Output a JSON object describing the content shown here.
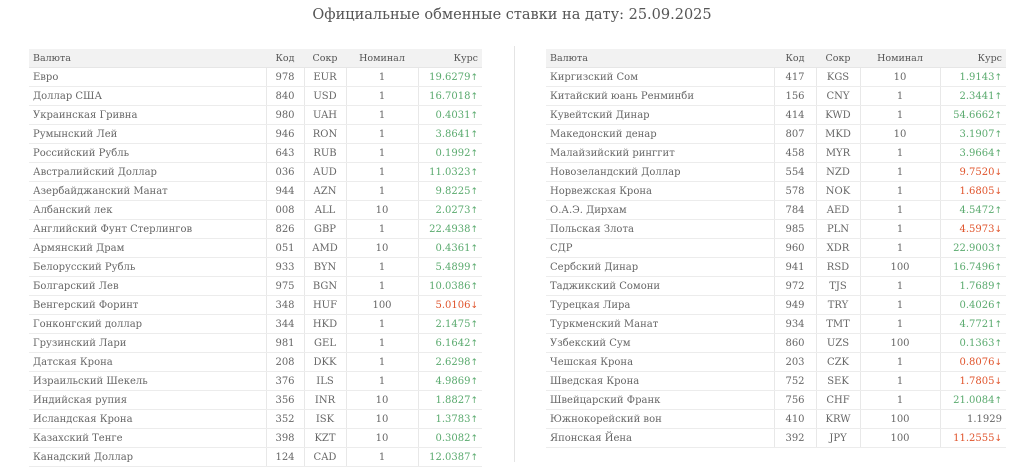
{
  "title": "Официальные обменные ставки на дату: 25.09.2025",
  "headers": {
    "currency": "Валюта",
    "code": "Код",
    "abbr": "Сокр",
    "nominal": "Номинал",
    "rate": "Курс"
  },
  "colors": {
    "up": "#5aaa6e",
    "down": "#e0542c",
    "neutral": "#666666"
  },
  "left_rows": [
    {
      "name": "Евро",
      "code": "978",
      "abbr": "EUR",
      "nominal": "1",
      "rate": "19.6279",
      "trend": "up"
    },
    {
      "name": "Доллар США",
      "code": "840",
      "abbr": "USD",
      "nominal": "1",
      "rate": "16.7018",
      "trend": "up"
    },
    {
      "name": "Украинская Гривна",
      "code": "980",
      "abbr": "UAH",
      "nominal": "1",
      "rate": "0.4031",
      "trend": "up"
    },
    {
      "name": "Румынский Лей",
      "code": "946",
      "abbr": "RON",
      "nominal": "1",
      "rate": "3.8641",
      "trend": "up"
    },
    {
      "name": "Российский Рубль",
      "code": "643",
      "abbr": "RUB",
      "nominal": "1",
      "rate": "0.1992",
      "trend": "up"
    },
    {
      "name": "Австралийский Доллар",
      "code": "036",
      "abbr": "AUD",
      "nominal": "1",
      "rate": "11.0323",
      "trend": "up"
    },
    {
      "name": "Азербайджанский Манат",
      "code": "944",
      "abbr": "AZN",
      "nominal": "1",
      "rate": "9.8225",
      "trend": "up"
    },
    {
      "name": "Албанский лек",
      "code": "008",
      "abbr": "ALL",
      "nominal": "10",
      "rate": "2.0273",
      "trend": "up"
    },
    {
      "name": "Английский Фунт Стерлингов",
      "code": "826",
      "abbr": "GBP",
      "nominal": "1",
      "rate": "22.4938",
      "trend": "up"
    },
    {
      "name": "Армянский Драм",
      "code": "051",
      "abbr": "AMD",
      "nominal": "10",
      "rate": "0.4361",
      "trend": "up"
    },
    {
      "name": "Белорусский Рубль",
      "code": "933",
      "abbr": "BYN",
      "nominal": "1",
      "rate": "5.4899",
      "trend": "up"
    },
    {
      "name": "Болгарский Лев",
      "code": "975",
      "abbr": "BGN",
      "nominal": "1",
      "rate": "10.0386",
      "trend": "up"
    },
    {
      "name": "Венгерский Форинт",
      "code": "348",
      "abbr": "HUF",
      "nominal": "100",
      "rate": "5.0106",
      "trend": "down"
    },
    {
      "name": "Гонконгский доллар",
      "code": "344",
      "abbr": "HKD",
      "nominal": "1",
      "rate": "2.1475",
      "trend": "up"
    },
    {
      "name": "Грузинский Лари",
      "code": "981",
      "abbr": "GEL",
      "nominal": "1",
      "rate": "6.1642",
      "trend": "up"
    },
    {
      "name": "Датская Крона",
      "code": "208",
      "abbr": "DKK",
      "nominal": "1",
      "rate": "2.6298",
      "trend": "up"
    },
    {
      "name": "Израильский Шекель",
      "code": "376",
      "abbr": "ILS",
      "nominal": "1",
      "rate": "4.9869",
      "trend": "up"
    },
    {
      "name": "Индийская рупия",
      "code": "356",
      "abbr": "INR",
      "nominal": "10",
      "rate": "1.8827",
      "trend": "up"
    },
    {
      "name": "Исландская Крона",
      "code": "352",
      "abbr": "ISK",
      "nominal": "10",
      "rate": "1.3783",
      "trend": "up"
    },
    {
      "name": "Казахский Тенге",
      "code": "398",
      "abbr": "KZT",
      "nominal": "10",
      "rate": "0.3082",
      "trend": "up"
    },
    {
      "name": "Канадский Доллар",
      "code": "124",
      "abbr": "CAD",
      "nominal": "1",
      "rate": "12.0387",
      "trend": "up"
    }
  ],
  "right_rows": [
    {
      "name": "Киргизский Сом",
      "code": "417",
      "abbr": "KGS",
      "nominal": "10",
      "rate": "1.9143",
      "trend": "up"
    },
    {
      "name": "Китайский юань Ренминби",
      "code": "156",
      "abbr": "CNY",
      "nominal": "1",
      "rate": "2.3441",
      "trend": "up"
    },
    {
      "name": "Кувейтский Динар",
      "code": "414",
      "abbr": "KWD",
      "nominal": "1",
      "rate": "54.6662",
      "trend": "up"
    },
    {
      "name": "Македонский денар",
      "code": "807",
      "abbr": "MKD",
      "nominal": "10",
      "rate": "3.1907",
      "trend": "up"
    },
    {
      "name": "Малайзийский ринггит",
      "code": "458",
      "abbr": "MYR",
      "nominal": "1",
      "rate": "3.9664",
      "trend": "up"
    },
    {
      "name": "Новозеландский Доллар",
      "code": "554",
      "abbr": "NZD",
      "nominal": "1",
      "rate": "9.7520",
      "trend": "down"
    },
    {
      "name": "Норвежская Крона",
      "code": "578",
      "abbr": "NOK",
      "nominal": "1",
      "rate": "1.6805",
      "trend": "down"
    },
    {
      "name": "О.А.Э. Дирхам",
      "code": "784",
      "abbr": "AED",
      "nominal": "1",
      "rate": "4.5472",
      "trend": "up"
    },
    {
      "name": "Польская Злота",
      "code": "985",
      "abbr": "PLN",
      "nominal": "1",
      "rate": "4.5973",
      "trend": "down"
    },
    {
      "name": "СДР",
      "code": "960",
      "abbr": "XDR",
      "nominal": "1",
      "rate": "22.9003",
      "trend": "up"
    },
    {
      "name": "Сербский Динар",
      "code": "941",
      "abbr": "RSD",
      "nominal": "100",
      "rate": "16.7496",
      "trend": "up"
    },
    {
      "name": "Таджикский Сомони",
      "code": "972",
      "abbr": "TJS",
      "nominal": "1",
      "rate": "1.7689",
      "trend": "up"
    },
    {
      "name": "Турецкая Лира",
      "code": "949",
      "abbr": "TRY",
      "nominal": "1",
      "rate": "0.4026",
      "trend": "up"
    },
    {
      "name": "Туркменский Манат",
      "code": "934",
      "abbr": "TMT",
      "nominal": "1",
      "rate": "4.7721",
      "trend": "up"
    },
    {
      "name": "Узбекский Сум",
      "code": "860",
      "abbr": "UZS",
      "nominal": "100",
      "rate": "0.1363",
      "trend": "up"
    },
    {
      "name": "Чешская Крона",
      "code": "203",
      "abbr": "CZK",
      "nominal": "1",
      "rate": "0.8076",
      "trend": "down"
    },
    {
      "name": "Шведская Крона",
      "code": "752",
      "abbr": "SEK",
      "nominal": "1",
      "rate": "1.7805",
      "trend": "down"
    },
    {
      "name": "Швейцарский Франк",
      "code": "756",
      "abbr": "CHF",
      "nominal": "1",
      "rate": "21.0084",
      "trend": "up"
    },
    {
      "name": "Южнокорейский вон",
      "code": "410",
      "abbr": "KRW",
      "nominal": "100",
      "rate": "1.1929",
      "trend": "same"
    },
    {
      "name": "Японская Йена",
      "code": "392",
      "abbr": "JPY",
      "nominal": "100",
      "rate": "11.2555",
      "trend": "down"
    }
  ]
}
